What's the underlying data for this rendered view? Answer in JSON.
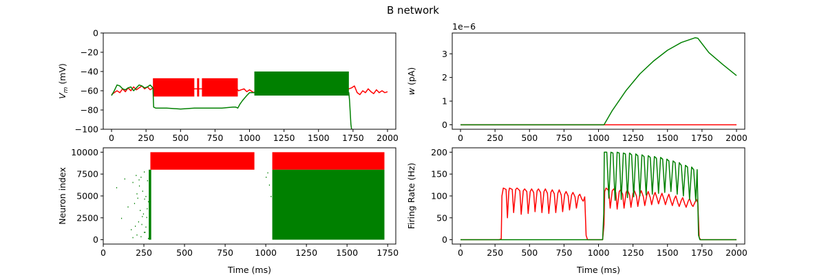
{
  "figure": {
    "title": "B network"
  },
  "colors": {
    "exc": "#008000",
    "inh": "#ff0000",
    "axis": "#000000"
  },
  "chart_data": [
    {
      "id": "vm",
      "type": "line",
      "ylabel_main": "V",
      "ylabel_sub": "m",
      "ylabel_tail": " (mV)",
      "xlim": [
        -60,
        2060
      ],
      "ylim": [
        -100,
        0
      ],
      "xticks": [
        0,
        250,
        500,
        750,
        1000,
        1250,
        1500,
        1750,
        2000
      ],
      "yticks": [
        0,
        -20,
        -40,
        -60,
        -80,
        -100
      ],
      "series": [
        {
          "color": "#ff0000",
          "x": [
            0,
            20,
            40,
            60,
            80,
            100,
            120,
            140,
            160,
            180,
            200,
            220,
            240,
            260,
            280,
            300,
            320,
            910,
            920,
            960,
            980,
            1000,
            1030,
            1050,
            1720,
            1740,
            1760,
            1780,
            1800,
            1820,
            1840,
            1860,
            1880,
            1900,
            1920,
            1940,
            1960,
            1980,
            2000
          ],
          "y": [
            -64,
            -62,
            -60,
            -62,
            -58,
            -61,
            -57,
            -60,
            -56,
            -59,
            -57,
            -55,
            -58,
            -56,
            -59,
            -57,
            -58,
            -58,
            -60,
            -58,
            -61,
            -59,
            -62,
            -60,
            -58,
            -57,
            -55,
            -62,
            -64,
            -60,
            -62,
            -58,
            -61,
            -63,
            -59,
            -62,
            -60,
            -62,
            -61
          ],
          "bands": [
            {
              "x0": 300,
              "x1": 600,
              "y0": -66,
              "y1": -47
            },
            {
              "x0": 620,
              "x1": 635,
              "y0": -66,
              "y1": -47
            },
            {
              "x0": 655,
              "x1": 915,
              "y0": -66,
              "y1": -47
            }
          ]
        },
        {
          "color": "#008000",
          "x": [
            0,
            20,
            40,
            60,
            80,
            100,
            120,
            140,
            160,
            180,
            200,
            220,
            240,
            260,
            280,
            300,
            305,
            320,
            400,
            500,
            600,
            700,
            800,
            880,
            900,
            915,
            930,
            950,
            980,
            1000,
            1030,
            1040,
            1720,
            1725,
            1735,
            1740
          ],
          "y": [
            -65,
            -60,
            -54,
            -55,
            -58,
            -59,
            -57,
            -56,
            -60,
            -57,
            -54,
            -55,
            -57,
            -56,
            -54,
            -57,
            -77,
            -78,
            -78,
            -79,
            -78,
            -78,
            -78,
            -77,
            -77,
            -78,
            -74,
            -70,
            -65,
            -62,
            -62,
            -62,
            -62,
            -70,
            -95,
            -100
          ],
          "bands": [
            {
              "x0": 1035,
              "x1": 1720,
              "y0": -65,
              "y1": -40
            }
          ]
        }
      ]
    },
    {
      "id": "w",
      "type": "line",
      "ylabel_main": "w",
      "ylabel_tail": " (pA)",
      "offset_text": "1e−6",
      "xlim": [
        -60,
        2060
      ],
      "ylim": [
        -0.19,
        3.88
      ],
      "xticks": [
        0,
        250,
        500,
        750,
        1000,
        1250,
        1500,
        1750,
        2000
      ],
      "yticks": [
        0,
        1,
        2,
        3
      ],
      "series": [
        {
          "color": "#ff0000",
          "x": [
            0,
            1040,
            2000
          ],
          "y": [
            0,
            0,
            0
          ]
        },
        {
          "color": "#008000",
          "x": [
            0,
            1040,
            1100,
            1200,
            1300,
            1400,
            1500,
            1600,
            1700,
            1720,
            1800,
            1900,
            2000
          ],
          "y": [
            0,
            0,
            0.6,
            1.45,
            2.15,
            2.7,
            3.15,
            3.48,
            3.68,
            3.66,
            3.05,
            2.55,
            2.08
          ]
        }
      ]
    },
    {
      "id": "raster",
      "type": "scatter",
      "ylabel": "Neuron index",
      "xlabel": "Time (ms)",
      "xlim": [
        0,
        1800
      ],
      "ylim": [
        -500,
        10500
      ],
      "xticks": [
        0,
        250,
        500,
        750,
        1000,
        1250,
        1500,
        1750
      ],
      "yticks": [
        0,
        2500,
        5000,
        7500,
        10000
      ],
      "blocks": [
        {
          "color": "#ff0000",
          "x0": 290,
          "x1": 930,
          "y0": 8000,
          "y1": 10000
        },
        {
          "color": "#ff0000",
          "x0": 1040,
          "x1": 1730,
          "y0": 8000,
          "y1": 10000
        },
        {
          "color": "#008000",
          "x0": 1040,
          "x1": 1730,
          "y0": 0,
          "y1": 8000
        },
        {
          "color": "#008000",
          "x0": 280,
          "x1": 295,
          "y0": 0,
          "y1": 8000
        }
      ],
      "points": [
        {
          "color": "#008000",
          "x": [
            80,
            110,
            130,
            150,
            170,
            180,
            190,
            200,
            205,
            210,
            215,
            220,
            225,
            230,
            235,
            240,
            245,
            250,
            255,
            260,
            265,
            270,
            275,
            180,
            195,
            230,
            250,
            260,
            275,
            205,
            218,
            238,
            252,
            268,
            1000,
            1010,
            1020,
            1030
          ],
          "y": [
            6000,
            2500,
            7000,
            3800,
            1200,
            6600,
            4200,
            7400,
            600,
            4800,
            2100,
            6200,
            3400,
            7200,
            1800,
            5600,
            3000,
            7800,
            900,
            5000,
            2600,
            6800,
            4400,
            300,
            1600,
            400,
            900,
            1500,
            200,
            5300,
            6900,
            2700,
            4700,
            3600,
            7200,
            7700,
            6300,
            5000
          ]
        }
      ]
    },
    {
      "id": "rate",
      "type": "line",
      "ylabel": "Firing Rate (Hz)",
      "xlabel": "Time (ms)",
      "xlim": [
        -60,
        2060
      ],
      "ylim": [
        -10,
        210
      ],
      "xticks": [
        0,
        250,
        500,
        750,
        1000,
        1250,
        1500,
        1750,
        2000
      ],
      "yticks": [
        0,
        50,
        100,
        150,
        200
      ],
      "series": [
        {
          "color": "#ff0000",
          "x": [
            0,
            280,
            295,
            300,
            310,
            330,
            340,
            350,
            355,
            375,
            385,
            400,
            410,
            430,
            440,
            455,
            465,
            480,
            490,
            505,
            515,
            530,
            540,
            555,
            565,
            580,
            590,
            605,
            615,
            630,
            640,
            655,
            665,
            680,
            690,
            705,
            715,
            730,
            740,
            755,
            765,
            780,
            790,
            805,
            815,
            830,
            840,
            855,
            865,
            880,
            890,
            900,
            910,
            920,
            1030,
            1040,
            1045,
            1055,
            1075,
            1085,
            1100,
            1110,
            1125,
            1135,
            1150,
            1160,
            1175,
            1185,
            1200,
            1210,
            1225,
            1235,
            1250,
            1260,
            1275,
            1285,
            1300,
            1310,
            1325,
            1335,
            1350,
            1360,
            1375,
            1385,
            1400,
            1410,
            1425,
            1435,
            1450,
            1460,
            1475,
            1485,
            1500,
            1510,
            1525,
            1535,
            1550,
            1560,
            1575,
            1585,
            1600,
            1610,
            1625,
            1635,
            1650,
            1660,
            1675,
            1685,
            1700,
            1710,
            1720,
            1730,
            1740,
            2000
          ],
          "y": [
            0,
            0,
            2,
            100,
            118,
            115,
            50,
            110,
            118,
            115,
            62,
            115,
            118,
            112,
            58,
            112,
            116,
            110,
            60,
            110,
            116,
            108,
            64,
            112,
            116,
            108,
            62,
            110,
            116,
            106,
            60,
            108,
            114,
            105,
            62,
            106,
            114,
            102,
            64,
            104,
            110,
            100,
            68,
            102,
            108,
            98,
            72,
            100,
            104,
            92,
            88,
            98,
            10,
            0,
            0,
            35,
            110,
            118,
            112,
            72,
            112,
            116,
            108,
            70,
            110,
            114,
            104,
            72,
            108,
            114,
            102,
            74,
            106,
            112,
            100,
            76,
            104,
            112,
            98,
            78,
            102,
            110,
            96,
            80,
            100,
            108,
            94,
            82,
            98,
            106,
            92,
            80,
            96,
            104,
            88,
            78,
            94,
            100,
            84,
            76,
            90,
            96,
            82,
            74,
            88,
            94,
            80,
            76,
            86,
            92,
            84,
            5,
            0,
            0
          ]
        },
        {
          "color": "#008000",
          "x": [
            0,
            1030,
            1038,
            1042,
            1060,
            1075,
            1090,
            1105,
            1120,
            1135,
            1150,
            1165,
            1180,
            1195,
            1210,
            1225,
            1240,
            1255,
            1270,
            1285,
            1300,
            1315,
            1330,
            1345,
            1360,
            1375,
            1390,
            1405,
            1420,
            1435,
            1450,
            1465,
            1480,
            1495,
            1510,
            1525,
            1540,
            1555,
            1570,
            1585,
            1600,
            1615,
            1630,
            1645,
            1660,
            1675,
            1690,
            1705,
            1715,
            1725,
            1735,
            2000
          ],
          "y": [
            0,
            0,
            60,
            200,
            200,
            95,
            200,
            198,
            90,
            200,
            198,
            92,
            198,
            196,
            96,
            198,
            194,
            98,
            196,
            192,
            100,
            194,
            190,
            102,
            192,
            188,
            104,
            190,
            186,
            106,
            188,
            184,
            108,
            184,
            180,
            110,
            180,
            176,
            104,
            176,
            170,
            100,
            170,
            166,
            92,
            166,
            160,
            88,
            160,
            10,
            0,
            0
          ]
        }
      ]
    }
  ]
}
